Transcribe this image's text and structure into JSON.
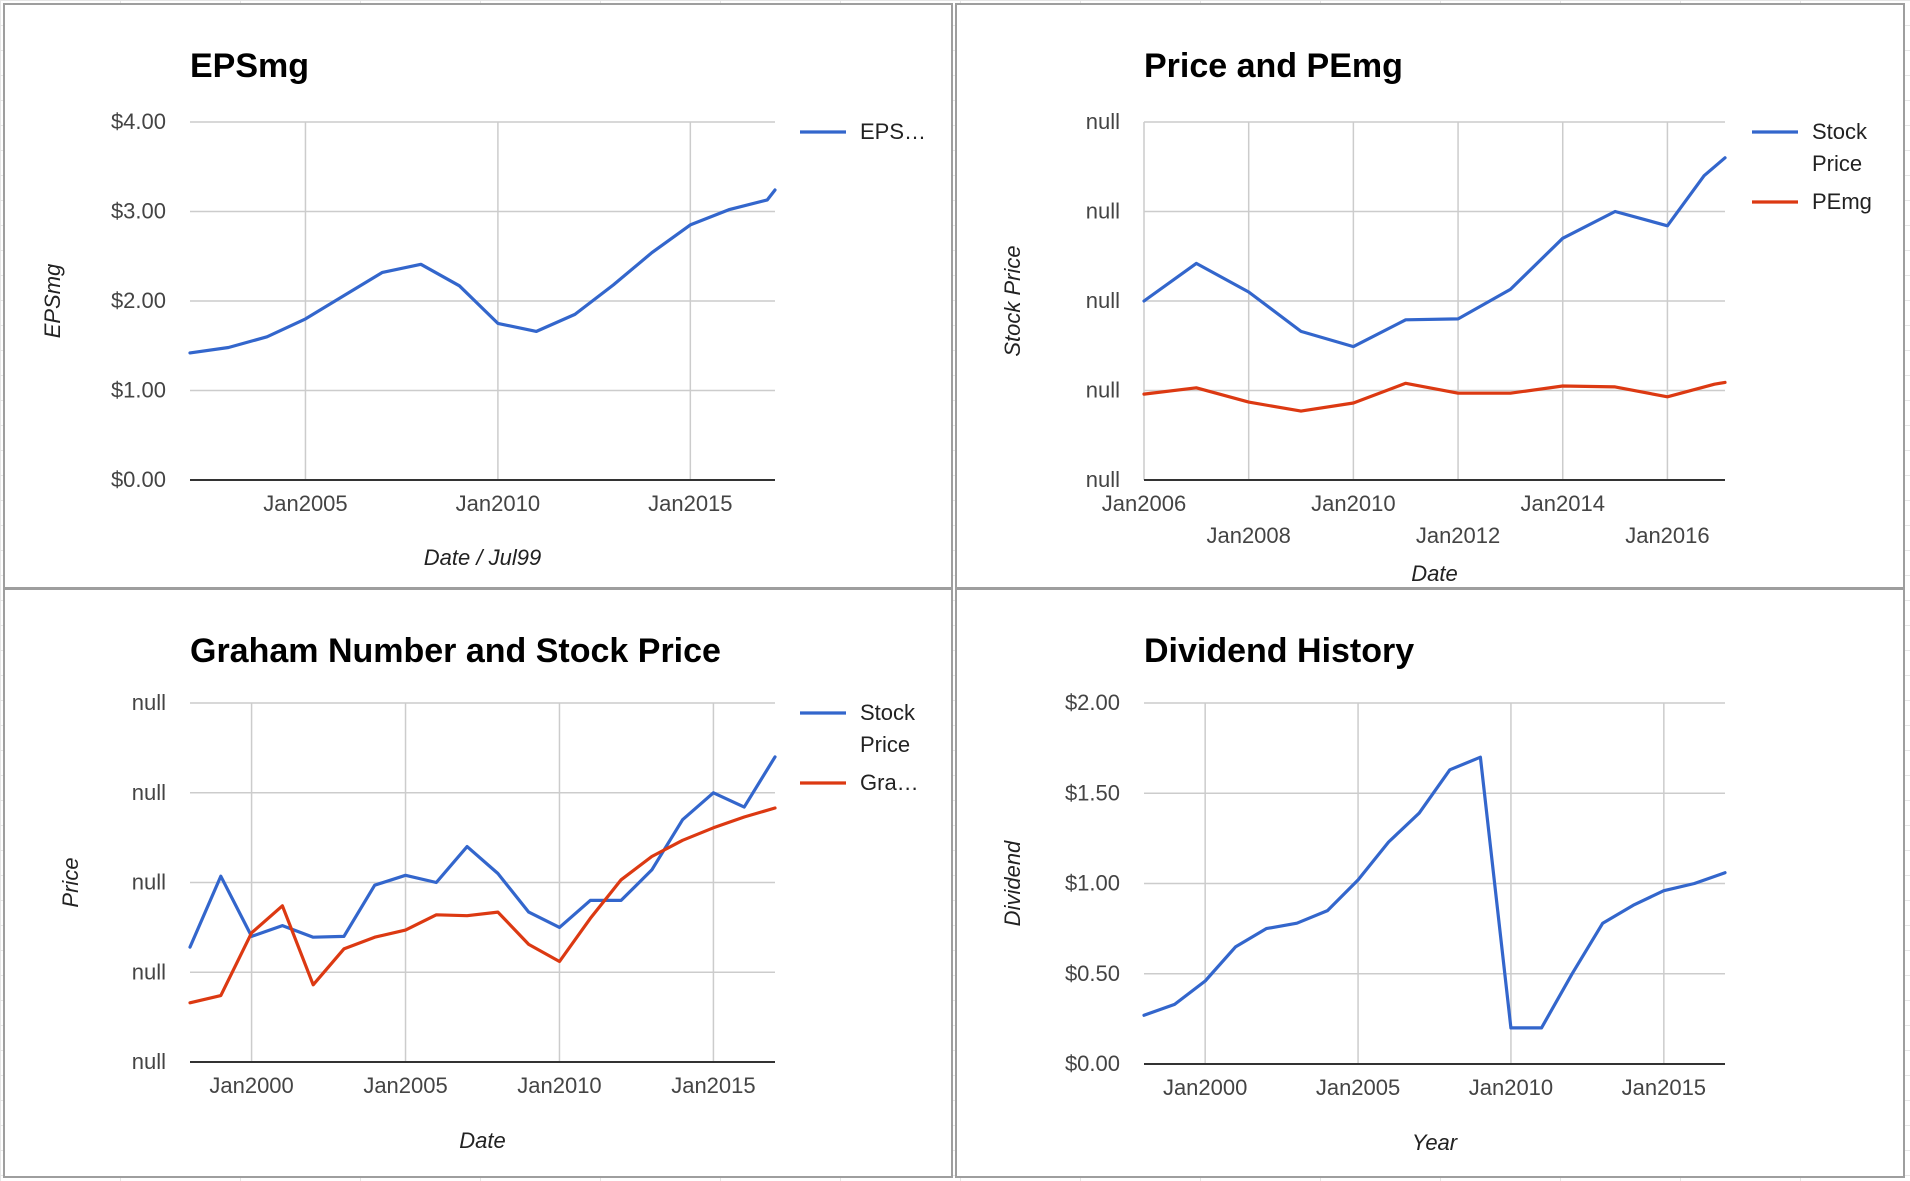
{
  "chart_data": [
    {
      "type": "line",
      "title": "EPSmg",
      "xlabel": "Date / Jul99",
      "ylabel": "EPSmg",
      "x_ticks": [
        "Jan2005",
        "Jan2010",
        "Jan2015"
      ],
      "y_ticks": [
        "$4.00",
        "$3.00",
        "$2.00",
        "$1.00",
        "$0.00"
      ],
      "xlim": [
        2002.0,
        2017.2
      ],
      "ylim": [
        0,
        4
      ],
      "grid": true,
      "legend": "right",
      "series": [
        {
          "name": "EPS…",
          "color": "#3366cc",
          "x": [
            2002.0,
            2003.0,
            2004.0,
            2005.0,
            2006.0,
            2007.0,
            2008.0,
            2009.0,
            2010.0,
            2011.0,
            2012.0,
            2013.0,
            2014.0,
            2015.0,
            2016.0,
            2017.0,
            2017.2
          ],
          "y": [
            1.42,
            1.48,
            1.6,
            1.8,
            2.06,
            2.32,
            2.41,
            2.17,
            1.75,
            1.66,
            1.85,
            2.18,
            2.54,
            2.85,
            3.02,
            3.13,
            3.24
          ]
        }
      ]
    },
    {
      "type": "line",
      "title": "Price and PEmg",
      "xlabel": "Date",
      "ylabel": "Stock Price",
      "x_ticks": [
        "Jan2006",
        "Jan2008",
        "Jan2010",
        "Jan2012",
        "Jan2014",
        "Jan2016"
      ],
      "y_ticks": [
        "null",
        "null",
        "null",
        "null",
        "null"
      ],
      "xlim": [
        2006.0,
        2017.1
      ],
      "ylim": [
        0,
        4
      ],
      "grid": true,
      "legend": "right",
      "series": [
        {
          "name": "Stock Price",
          "color": "#3366cc",
          "x": [
            2006.0,
            2007.0,
            2008.0,
            2009.0,
            2010.0,
            2011.0,
            2012.0,
            2013.0,
            2014.0,
            2015.0,
            2016.0,
            2016.7,
            2017.1
          ],
          "y": [
            2.0,
            2.42,
            2.1,
            1.66,
            1.49,
            1.79,
            1.8,
            2.13,
            2.7,
            3.0,
            2.84,
            3.4,
            3.6
          ]
        },
        {
          "name": "PEmg",
          "color": "#dc3912",
          "x": [
            2006.0,
            2007.0,
            2008.0,
            2009.0,
            2010.0,
            2011.0,
            2012.0,
            2013.0,
            2014.0,
            2015.0,
            2016.0,
            2016.9,
            2017.1
          ],
          "y": [
            0.96,
            1.03,
            0.87,
            0.77,
            0.86,
            1.08,
            0.97,
            0.97,
            1.05,
            1.04,
            0.93,
            1.07,
            1.09
          ]
        }
      ]
    },
    {
      "type": "line",
      "title": "Graham Number and Stock Price",
      "xlabel": "Date",
      "ylabel": "Price",
      "x_ticks": [
        "Jan2000",
        "Jan2005",
        "Jan2010",
        "Jan2015"
      ],
      "y_ticks": [
        "null",
        "null",
        "null",
        "null",
        "null"
      ],
      "xlim": [
        1998.0,
        2017.0
      ],
      "ylim": [
        0,
        4
      ],
      "grid": true,
      "legend": "right",
      "series": [
        {
          "name": "Stock Price",
          "color": "#3366cc",
          "x": [
            1998.0,
            1999.0,
            2000.0,
            2001.0,
            2002.0,
            2003.0,
            2004.0,
            2005.0,
            2006.0,
            2007.0,
            2008.0,
            2009.0,
            2010.0,
            2011.0,
            2012.0,
            2013.0,
            2014.0,
            2015.0,
            2016.0,
            2017.0
          ],
          "y": [
            1.28,
            2.07,
            1.4,
            1.52,
            1.39,
            1.4,
            1.97,
            2.08,
            2.0,
            2.4,
            2.1,
            1.67,
            1.5,
            1.8,
            1.8,
            2.14,
            2.7,
            3.0,
            2.84,
            3.4
          ]
        },
        {
          "name": "Gra…",
          "color": "#dc3912",
          "x": [
            1998.0,
            1999.0,
            2000.0,
            2001.0,
            2002.0,
            2003.0,
            2004.0,
            2005.0,
            2006.0,
            2007.0,
            2008.0,
            2009.0,
            2010.0,
            2011.0,
            2012.0,
            2013.0,
            2014.0,
            2015.0,
            2016.0,
            2017.0
          ],
          "y": [
            0.66,
            0.74,
            1.44,
            1.74,
            0.86,
            1.26,
            1.39,
            1.47,
            1.64,
            1.63,
            1.67,
            1.31,
            1.12,
            1.6,
            2.03,
            2.29,
            2.47,
            2.61,
            2.73,
            2.83
          ]
        }
      ]
    },
    {
      "type": "line",
      "title": "Dividend History",
      "xlabel": "Year",
      "ylabel": "Dividend",
      "x_ticks": [
        "Jan2000",
        "Jan2005",
        "Jan2010",
        "Jan2015"
      ],
      "y_ticks": [
        "$2.00",
        "$1.50",
        "$1.00",
        "$0.50",
        "$0.00"
      ],
      "xlim": [
        1998.0,
        2017.0
      ],
      "ylim": [
        0,
        2
      ],
      "grid": true,
      "legend": "none",
      "series": [
        {
          "color": "#3366cc",
          "x": [
            1998.0,
            1999.0,
            2000.0,
            2001.0,
            2002.0,
            2003.0,
            2004.0,
            2005.0,
            2006.0,
            2007.0,
            2008.0,
            2009.0,
            2010.0,
            2011.0,
            2012.0,
            2013.0,
            2014.0,
            2015.0,
            2016.0,
            2017.0
          ],
          "y": [
            0.27,
            0.33,
            0.46,
            0.65,
            0.75,
            0.78,
            0.85,
            1.02,
            1.23,
            1.39,
            1.63,
            1.7,
            0.2,
            0.2,
            0.5,
            0.78,
            0.88,
            0.96,
            1.0,
            1.06
          ]
        }
      ]
    }
  ]
}
